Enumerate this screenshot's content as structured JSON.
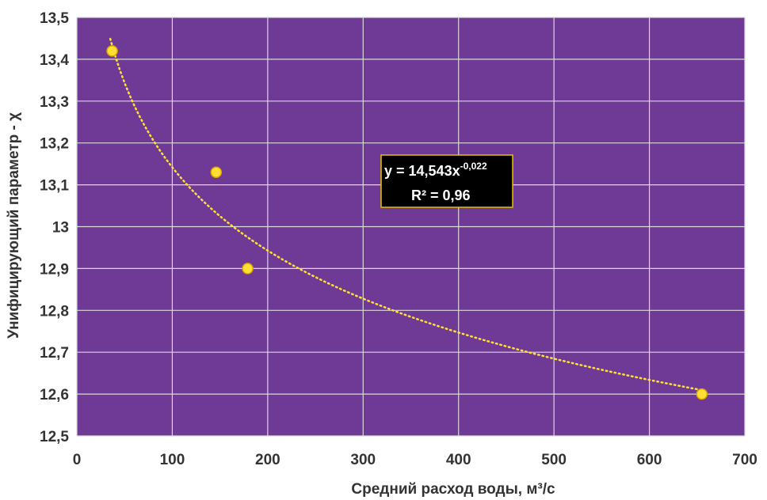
{
  "chart_data": {
    "type": "scatter",
    "xlabel": "Средний расход воды, м³/с",
    "ylabel": "Унифицирующий параметр - χ",
    "xlim": [
      0,
      700
    ],
    "ylim": [
      12.5,
      13.5
    ],
    "x_ticks": [
      "0",
      "100",
      "200",
      "300",
      "400",
      "500",
      "600",
      "700"
    ],
    "y_ticks": [
      "12,5",
      "12,6",
      "12,7",
      "12,8",
      "12,9",
      "13",
      "13,1",
      "13,2",
      "13,3",
      "13,4",
      "13,5"
    ],
    "points": [
      {
        "x": 37,
        "y": 13.42
      },
      {
        "x": 146,
        "y": 13.13
      },
      {
        "x": 179,
        "y": 12.9
      },
      {
        "x": 655,
        "y": 12.6
      }
    ],
    "trendline": {
      "type": "power",
      "a": 14.543,
      "b": -0.022,
      "x_from": 35,
      "x_to": 655
    },
    "equation": {
      "main": "y = 14,543x",
      "exponent": "-0,022",
      "r2": "R² = 0,96"
    },
    "grid": true,
    "plot_background": "#6f3a95",
    "grid_color": "#d9d9d9",
    "point_color": "#ffe033",
    "point_stroke": "#e0a800",
    "trend_color": "#ffe033",
    "equation_box_bg": "#000000",
    "equation_box_border": "#e6c200"
  }
}
